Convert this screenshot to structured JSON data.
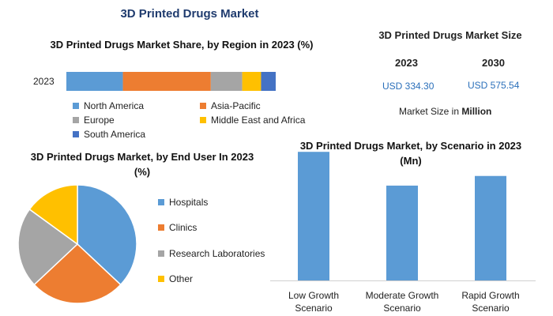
{
  "main_title": "3D Printed Drugs Market",
  "chart_data": [
    {
      "type": "bar",
      "orientation": "horizontal-stacked",
      "title": "3D Printed Drugs Market Share, by Region in 2023 (%)",
      "categories": [
        "2023"
      ],
      "series": [
        {
          "name": "North America",
          "values": [
            27
          ],
          "color": "#5b9bd5"
        },
        {
          "name": "Asia-Pacific",
          "values": [
            42
          ],
          "color": "#ed7d31"
        },
        {
          "name": "Europe",
          "values": [
            15
          ],
          "color": "#a5a5a5"
        },
        {
          "name": "Middle East and Africa",
          "values": [
            9
          ],
          "color": "#ffc000"
        },
        {
          "name": "South America",
          "values": [
            7
          ],
          "color": "#4472c4"
        }
      ],
      "legend_position": "bottom"
    },
    {
      "type": "pie",
      "title": "3D Printed Drugs Market, by End User In 2023 (%)",
      "labels": [
        "Hospitals",
        "Clinics",
        "Research Laboratories",
        "Other"
      ],
      "values": [
        37,
        26,
        22,
        15
      ],
      "colors": [
        "#5b9bd5",
        "#ed7d31",
        "#a5a5a5",
        "#ffc000"
      ],
      "legend_position": "right"
    },
    {
      "type": "bar",
      "title": "3D Printed Drugs Market, by Scenario in 2023 (Mn)",
      "categories": [
        "Low Growth Scenario",
        "Moderate Growth Scenario",
        "Rapid Growth Scenario"
      ],
      "category_lines": [
        [
          "Low Growth",
          "Scenario"
        ],
        [
          "Moderate Growth",
          "Scenario"
        ],
        [
          "Rapid Growth",
          "Scenario"
        ]
      ],
      "values": [
        400,
        295,
        325
      ],
      "ylim": [
        0,
        430
      ],
      "color": "#5b9bd5"
    }
  ],
  "market_size": {
    "title": "3D Printed Drugs Market Size",
    "years": [
      "2023",
      "2030"
    ],
    "values": [
      "USD 334.30",
      "USD 575.54"
    ],
    "note_prefix": "Market Size in ",
    "note_unit": "Million"
  }
}
